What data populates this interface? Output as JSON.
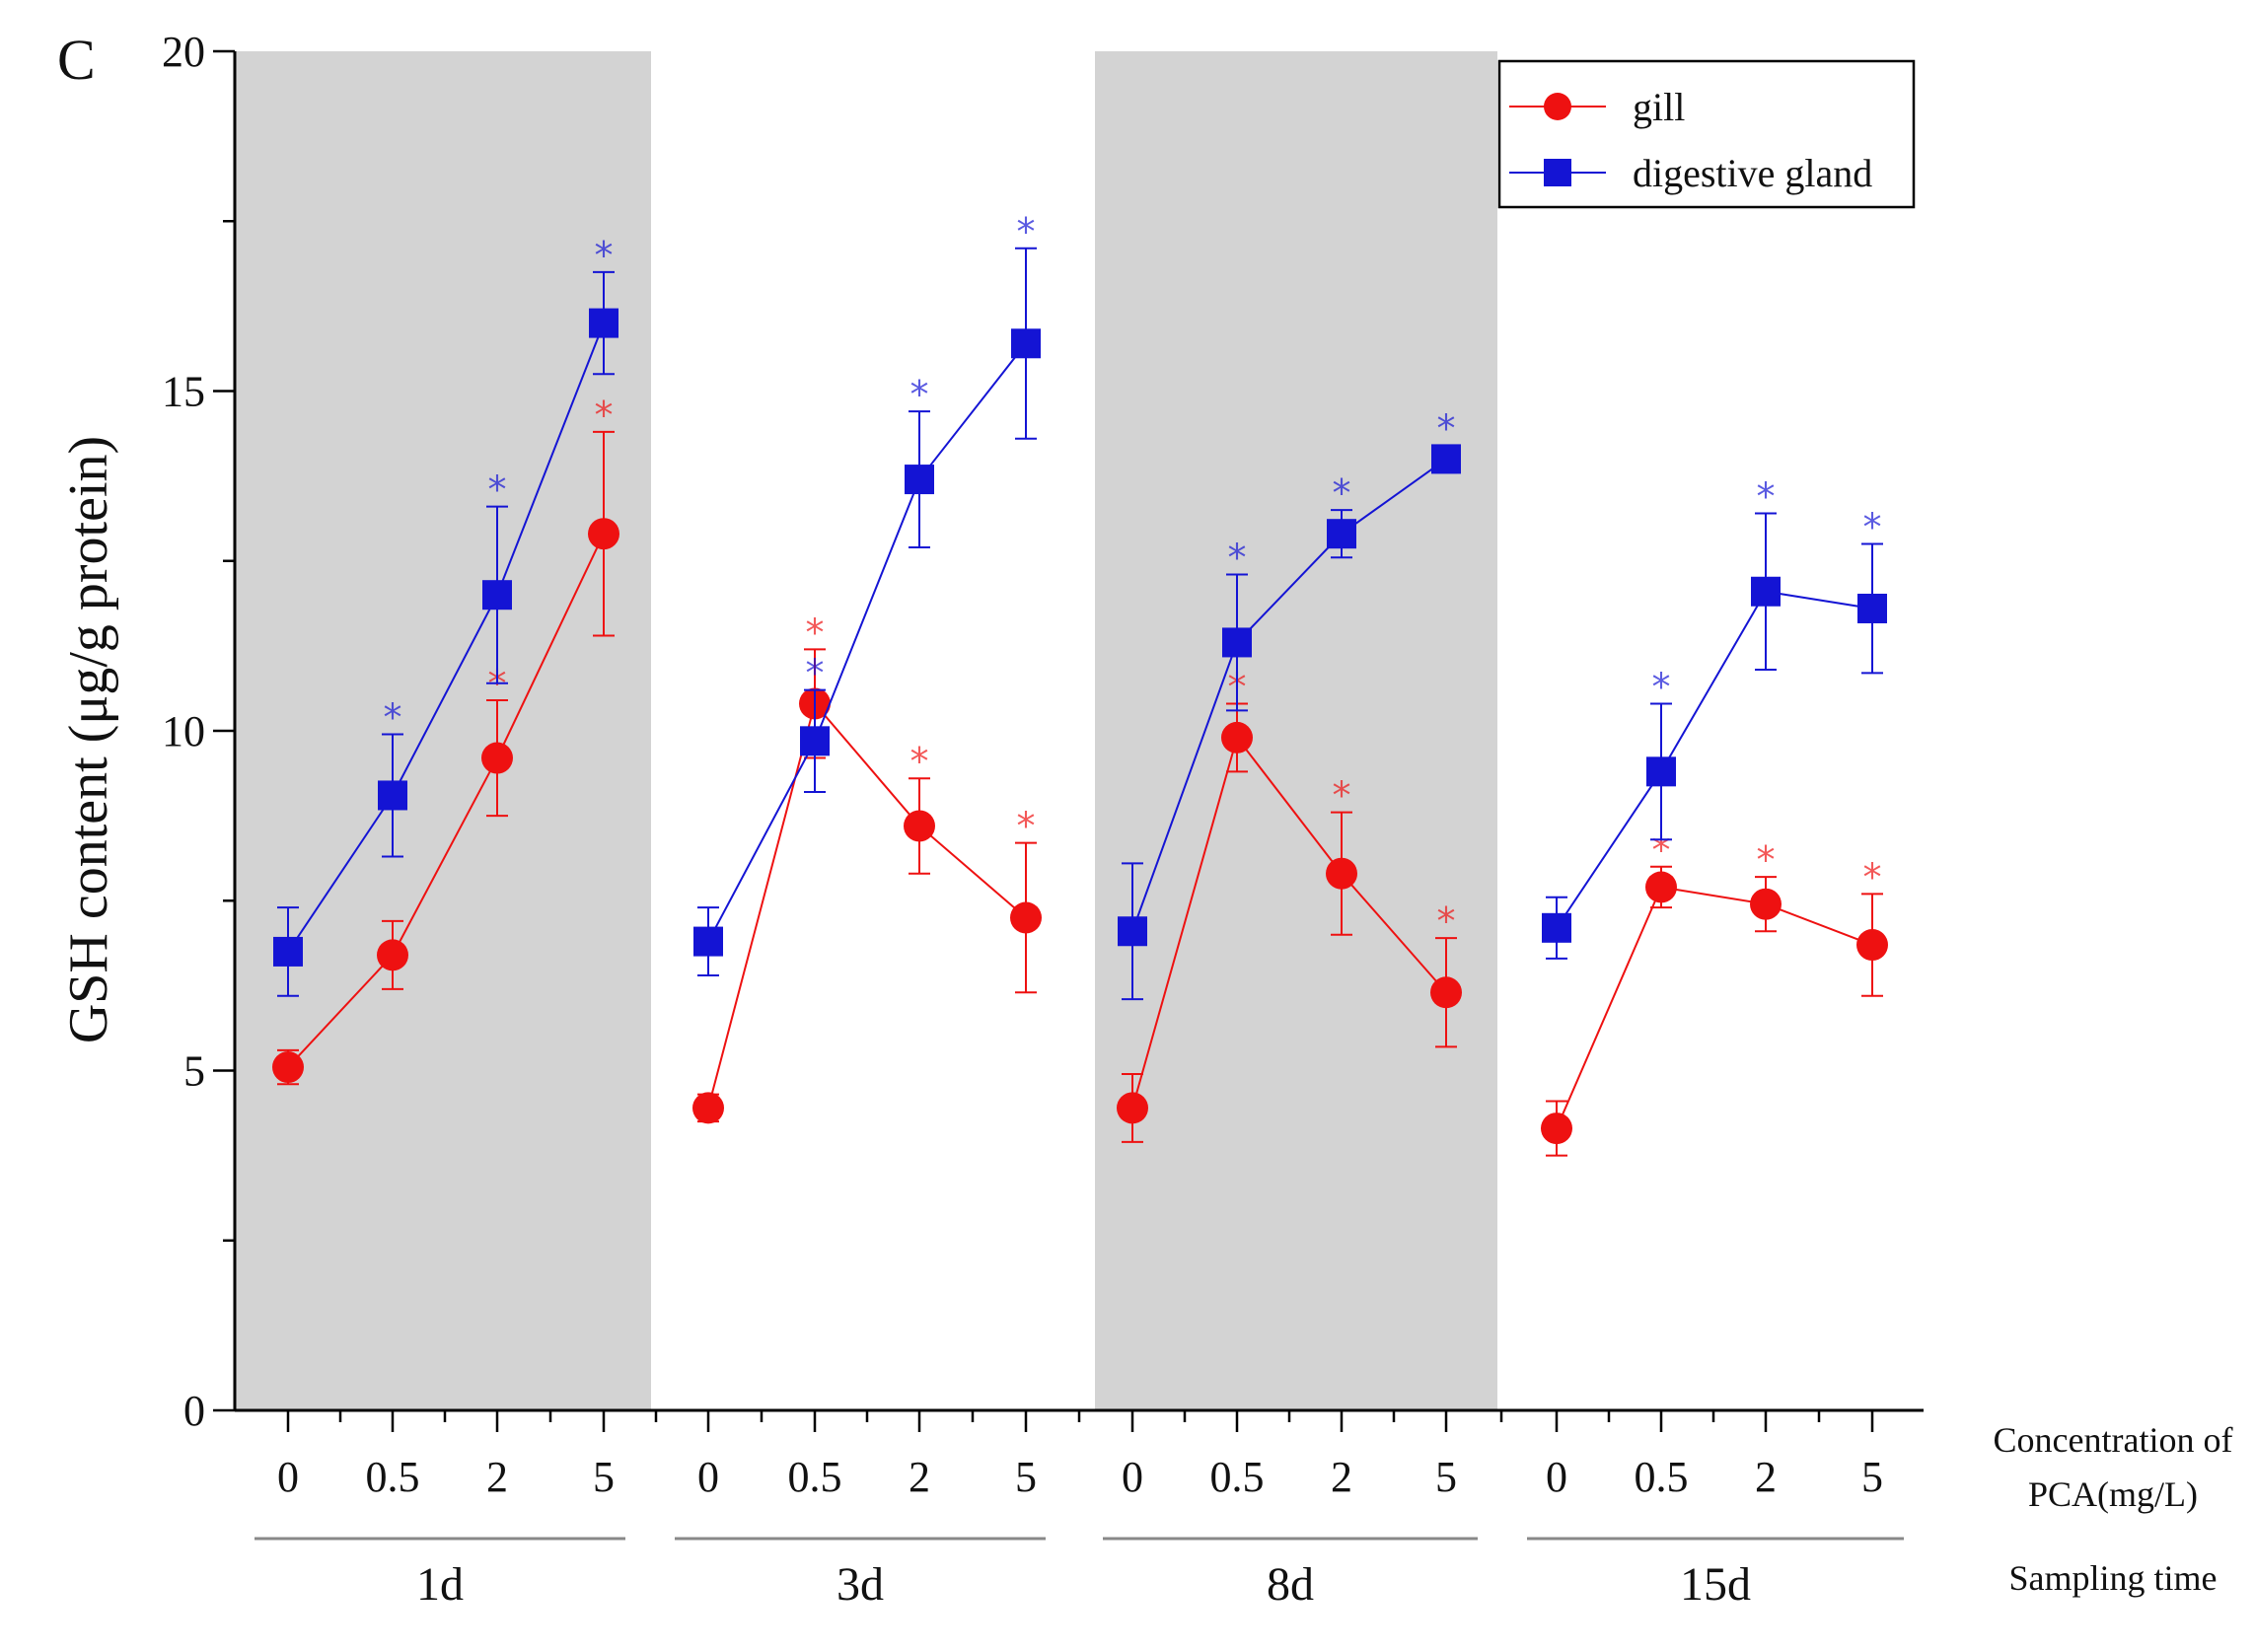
{
  "chart_data": {
    "type": "line",
    "panel_letter": "C",
    "ylabel": "GSH content (μg/g protein)",
    "ylim": [
      0,
      20
    ],
    "yticks": [
      0,
      5,
      10,
      15,
      20
    ],
    "groups": [
      {
        "label": "1d",
        "shaded": true
      },
      {
        "label": "3d",
        "shaded": false
      },
      {
        "label": "8d",
        "shaded": true
      },
      {
        "label": "15d",
        "shaded": false
      }
    ],
    "categories": [
      "0",
      "0.5",
      "2",
      "5"
    ],
    "right_labels": {
      "concentration_line1": "Concentration of",
      "concentration_line2": "PCA(mg/L)",
      "sampling": "Sampling time"
    },
    "colors": {
      "shade": "#d3d3d3",
      "axis": "#000000"
    },
    "series": [
      {
        "name": "gill",
        "color": "#ee1111",
        "marker": "circle",
        "values": [
          [
            5.05,
            6.7,
            9.6,
            12.9
          ],
          [
            4.45,
            10.4,
            8.6,
            7.25
          ],
          [
            4.45,
            9.9,
            7.9,
            6.15
          ],
          [
            4.15,
            7.7,
            7.45,
            6.85
          ]
        ],
        "errors": [
          [
            0.25,
            0.5,
            0.85,
            1.5
          ],
          [
            0.2,
            0.8,
            0.7,
            1.1
          ],
          [
            0.5,
            0.5,
            0.9,
            0.8
          ],
          [
            0.4,
            0.3,
            0.4,
            0.75
          ]
        ],
        "significant": [
          [
            false,
            false,
            true,
            true
          ],
          [
            false,
            true,
            true,
            true
          ],
          [
            false,
            true,
            true,
            true
          ],
          [
            false,
            true,
            true,
            true
          ]
        ]
      },
      {
        "name": "digestive gland",
        "color": "#1414d4",
        "marker": "square",
        "values": [
          [
            6.75,
            9.05,
            12.0,
            16.0
          ],
          [
            6.9,
            9.85,
            13.7,
            15.7
          ],
          [
            7.05,
            11.3,
            12.9,
            14.0
          ],
          [
            7.1,
            9.4,
            12.05,
            11.8
          ]
        ],
        "errors": [
          [
            0.65,
            0.9,
            1.3,
            0.75
          ],
          [
            0.5,
            0.75,
            1.0,
            1.4
          ],
          [
            1.0,
            1.0,
            0.35,
            0.2
          ],
          [
            0.45,
            1.0,
            1.15,
            0.95
          ]
        ],
        "significant": [
          [
            false,
            true,
            true,
            true
          ],
          [
            false,
            true,
            true,
            true
          ],
          [
            false,
            true,
            true,
            true
          ],
          [
            false,
            true,
            true,
            true
          ]
        ]
      }
    ],
    "significance_marker": "*"
  }
}
